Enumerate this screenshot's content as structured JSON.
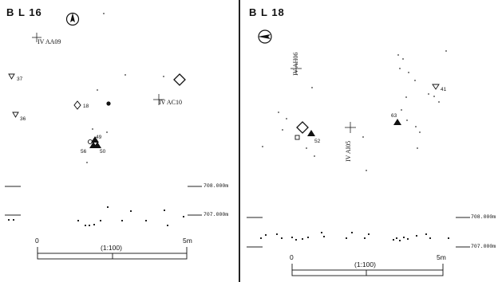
{
  "left": {
    "title": "B L 16",
    "grid_labels": [
      "IV AA09",
      "IV AC10"
    ],
    "finds": [
      "37",
      "36",
      "18",
      "49",
      "56",
      "50"
    ],
    "levels": [
      "708.000m",
      "707.000m"
    ],
    "scale": {
      "start": "0",
      "ratio": "(1:100)",
      "end": "5m"
    }
  },
  "right": {
    "title": "B L 18",
    "grid_labels": [
      "IV AH06",
      "IV AI05"
    ],
    "finds": [
      "41",
      "63",
      "52"
    ],
    "levels": [
      "708.000m",
      "707.000m"
    ],
    "scale": {
      "start": "0",
      "ratio": "(1:100)",
      "end": "5m"
    }
  },
  "icons": [
    "north-arrow-icon",
    "diamond-icon",
    "triangle-icon",
    "circle-icon",
    "square-icon",
    "crosshair-icon"
  ]
}
